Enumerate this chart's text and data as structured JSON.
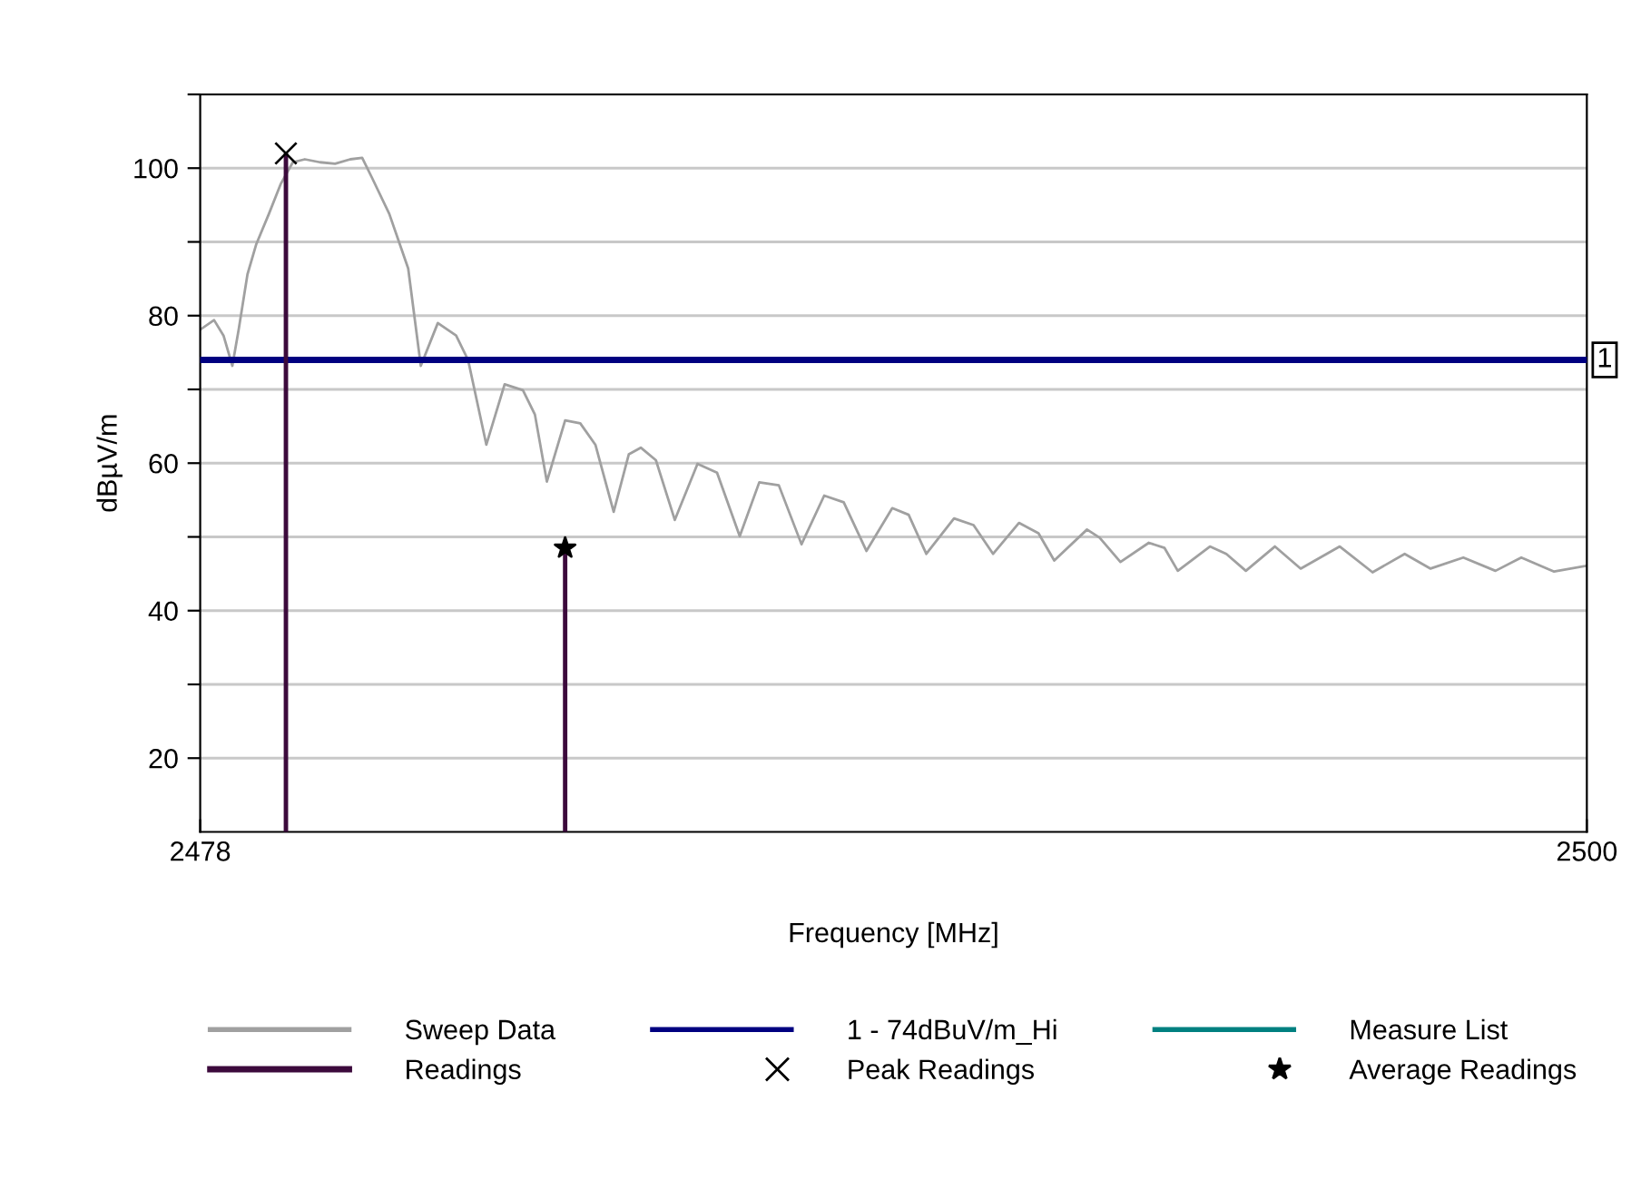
{
  "chart_data": {
    "type": "line",
    "xlabel": "Frequency [MHz]",
    "ylabel": "dBµV/m",
    "xlim": [
      2478,
      2500
    ],
    "xticks": [
      2478,
      2500
    ],
    "ylim": [
      10,
      110
    ],
    "yticks": [
      {
        "value": 20,
        "label": "20"
      },
      {
        "value": 30,
        "label": null
      },
      {
        "value": 40,
        "label": "40"
      },
      {
        "value": 50,
        "label": null
      },
      {
        "value": 60,
        "label": "60"
      },
      {
        "value": 70,
        "label": null
      },
      {
        "value": 80,
        "label": "80"
      },
      {
        "value": 90,
        "label": null
      },
      {
        "value": 100,
        "label": "100"
      },
      {
        "value": 110,
        "label": null
      }
    ],
    "grid": "y",
    "legend": "bottom",
    "series": [
      {
        "name": "Sweep Data",
        "color": "#a0a0a0",
        "x": [
          2478.0,
          2478.22,
          2478.37,
          2478.51,
          2478.61,
          2478.75,
          2478.89,
          2479.09,
          2479.28,
          2479.47,
          2479.66,
          2479.9,
          2480.14,
          2480.38,
          2480.57,
          2480.72,
          2481.0,
          2481.3,
          2481.5,
          2481.77,
          2482.06,
          2482.25,
          2482.54,
          2482.83,
          2483.12,
          2483.31,
          2483.5,
          2483.79,
          2484.03,
          2484.27,
          2484.56,
          2484.8,
          2484.99,
          2485.23,
          2485.53,
          2485.89,
          2486.2,
          2486.56,
          2486.87,
          2487.18,
          2487.54,
          2487.9,
          2488.21,
          2488.57,
          2488.98,
          2489.24,
          2489.52,
          2489.96,
          2490.27,
          2490.58,
          2490.99,
          2491.3,
          2491.55,
          2492.07,
          2492.27,
          2492.6,
          2493.05,
          2493.3,
          2493.51,
          2494.02,
          2494.28,
          2494.59,
          2495.05,
          2495.46,
          2496.08,
          2496.6,
          2497.11,
          2497.52,
          2498.04,
          2498.55,
          2498.96,
          2499.48,
          2500.0
        ],
        "values": [
          78.1,
          79.4,
          77.3,
          73.2,
          78.1,
          85.6,
          89.7,
          93.8,
          97.9,
          100.8,
          101.2,
          100.8,
          100.6,
          101.2,
          101.4,
          98.8,
          93.8,
          86.4,
          73.2,
          79.0,
          77.3,
          74.0,
          62.5,
          70.7,
          69.9,
          66.6,
          57.5,
          65.8,
          65.4,
          62.5,
          53.4,
          61.2,
          62.1,
          60.4,
          52.3,
          59.9,
          58.7,
          50.1,
          57.4,
          57.0,
          49.0,
          55.6,
          54.7,
          48.1,
          53.9,
          53.0,
          47.7,
          52.5,
          51.6,
          47.7,
          51.9,
          50.5,
          46.8,
          51.0,
          49.9,
          46.6,
          49.2,
          48.5,
          45.4,
          48.7,
          47.7,
          45.4,
          48.7,
          45.7,
          48.7,
          45.2,
          47.7,
          45.7,
          47.2,
          45.4,
          47.2,
          45.3,
          46.1
        ]
      },
      {
        "name": "Readings",
        "type": "bar",
        "color": "#3c0a3c",
        "x": [
          2479.36,
          2483.79
        ],
        "values": [
          102,
          48.5
        ]
      },
      {
        "name": "1 - 74dBuV/m_Hi",
        "color": "#000080",
        "x": [
          2478,
          2500
        ],
        "values": [
          74,
          74
        ]
      },
      {
        "name": "Peak Readings",
        "type": "scatter",
        "marker": "cross",
        "color": "#000000",
        "x": [
          2479.36
        ],
        "values": [
          102
        ]
      },
      {
        "name": "Measure List",
        "color": "#008080"
      },
      {
        "name": "Average Readings",
        "type": "scatter",
        "marker": "star",
        "color": "#000000",
        "x": [
          2483.79
        ],
        "values": [
          48.5
        ]
      }
    ],
    "annotations": [
      {
        "text": "1",
        "x": 2500,
        "y": 74
      }
    ]
  }
}
